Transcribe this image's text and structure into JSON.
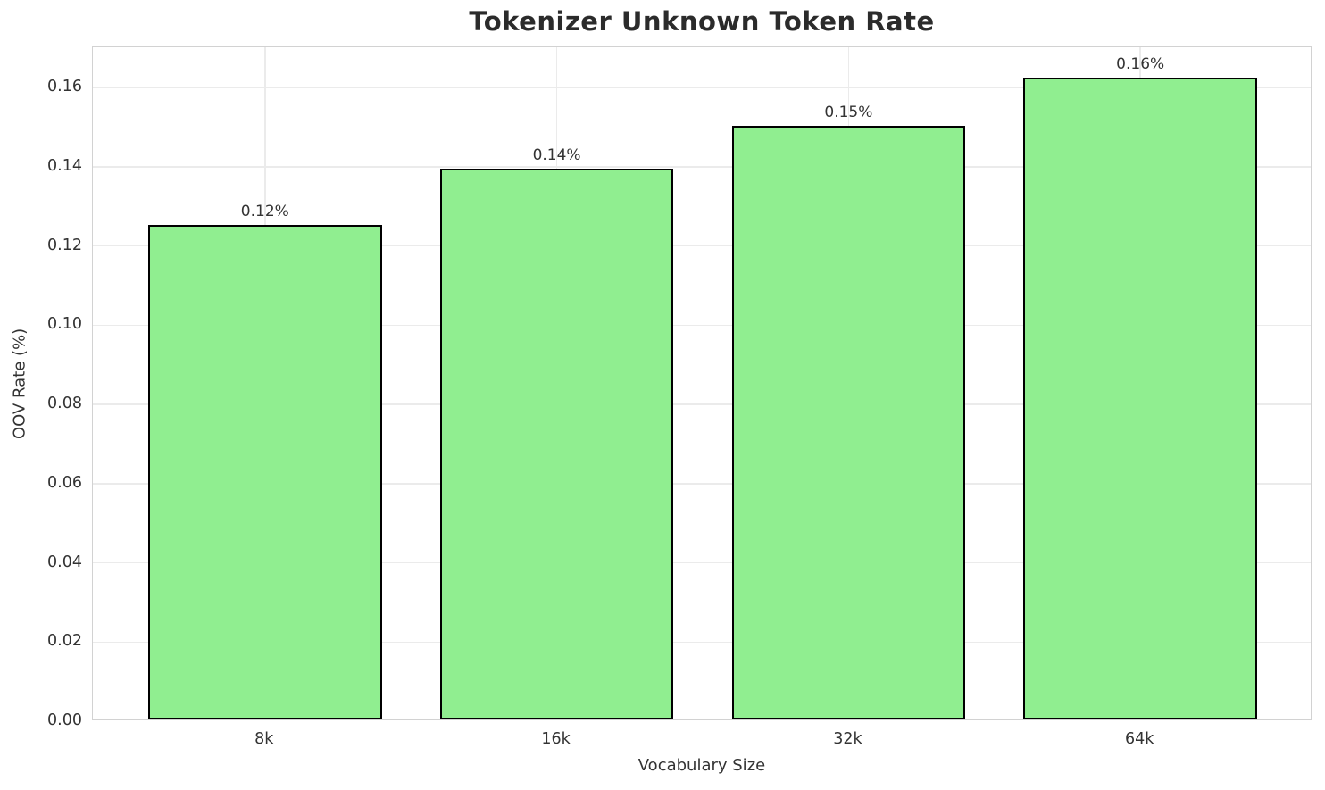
{
  "chart_data": {
    "type": "bar",
    "title": "Tokenizer Unknown Token Rate",
    "xlabel": "Vocabulary Size",
    "ylabel": "OOV Rate (%)",
    "categories": [
      "8k",
      "16k",
      "32k",
      "64k"
    ],
    "values": [
      0.125,
      0.139,
      0.15,
      0.162
    ],
    "bar_labels": [
      "0.12%",
      "0.14%",
      "0.15%",
      "0.16%"
    ],
    "yticks": [
      "0.00",
      "0.02",
      "0.04",
      "0.06",
      "0.08",
      "0.10",
      "0.12",
      "0.14",
      "0.16"
    ],
    "ylim": [
      0,
      0.1702
    ],
    "grid": true,
    "legend_position": "none",
    "colors": {
      "bar_fill": "#90EE90",
      "bar_edge": "#000000",
      "grid_line": "#ebebeb",
      "spine": "#d2d2d2",
      "title_text": "#2b2b2b",
      "tick_text": "#333333"
    }
  }
}
